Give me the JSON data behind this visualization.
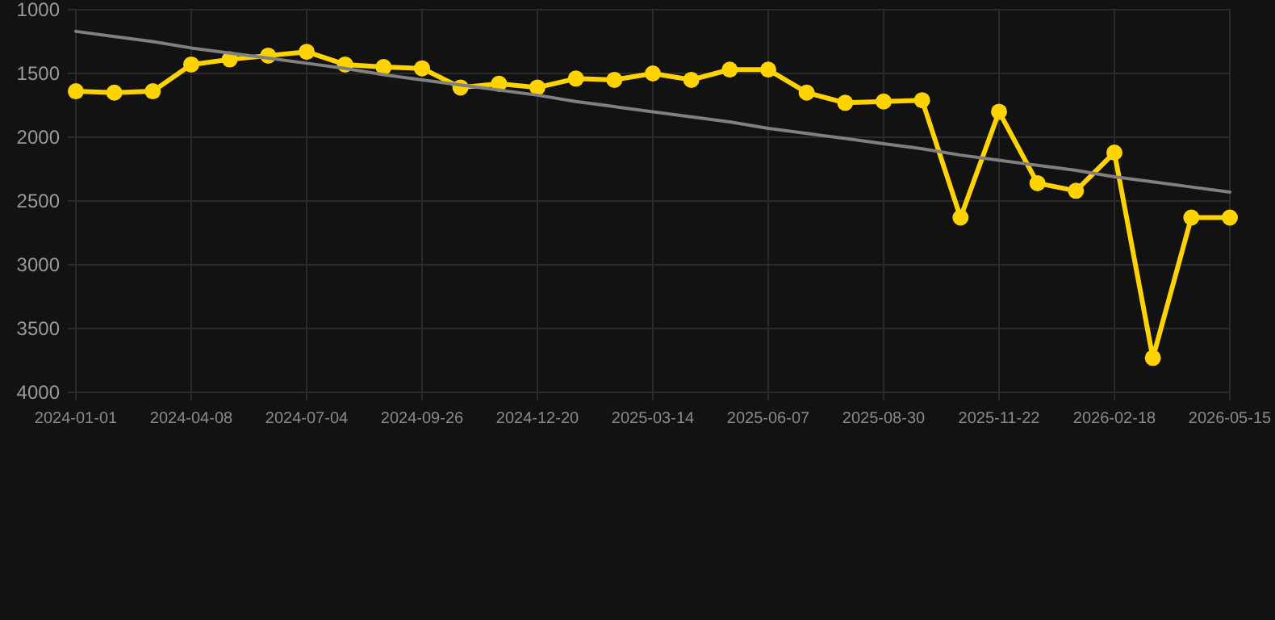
{
  "chart_data": {
    "type": "line",
    "categories": [
      "2024-01-01",
      null,
      null,
      "2024-04-08",
      null,
      null,
      "2024-07-04",
      null,
      null,
      "2024-09-26",
      null,
      null,
      "2024-12-20",
      null,
      null,
      "2025-03-14",
      null,
      null,
      "2025-06-07",
      null,
      null,
      "2025-08-30",
      null,
      null,
      "2025-11-22",
      null,
      null,
      "2026-02-18",
      null,
      null,
      "2026-05-15"
    ],
    "series": [
      {
        "color": "#ffd300",
        "marker": "circle",
        "values": [
          1640,
          1650,
          1640,
          1430,
          1390,
          1360,
          1330,
          1430,
          1450,
          1460,
          1610,
          1580,
          1610,
          1540,
          1550,
          1500,
          1550,
          1470,
          1470,
          1650,
          1730,
          1720,
          1710,
          2630,
          1800,
          2360,
          2420,
          2120,
          3730,
          2630,
          2630
        ]
      },
      {
        "type": "line",
        "color": "#808080",
        "marker": "none",
        "values": [
          1170,
          1210,
          1250,
          1300,
          1340,
          1380,
          1420,
          1460,
          1510,
          1550,
          1590,
          1630,
          1670,
          1720,
          1760,
          1800,
          1840,
          1880,
          1930,
          1970,
          2010,
          2050,
          2090,
          2140,
          2180,
          2220,
          2260,
          2310,
          2350,
          2390,
          2430
        ]
      }
    ],
    "ylim": [
      4000,
      1000
    ],
    "yticks": [
      1000,
      1500,
      2000,
      2500,
      3000,
      3500,
      4000
    ],
    "grid": true
  }
}
